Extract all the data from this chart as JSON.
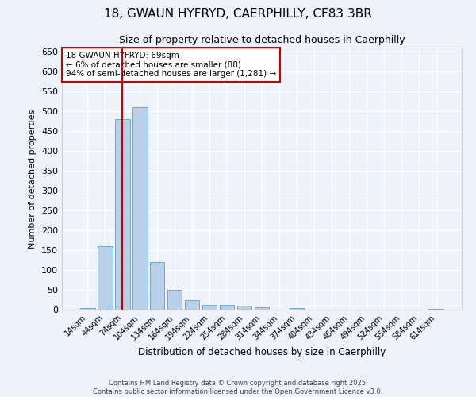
{
  "title_line1": "18, GWAUN HYFRYD, CAERPHILLY, CF83 3BR",
  "title_line2": "Size of property relative to detached houses in Caerphilly",
  "xlabel": "Distribution of detached houses by size in Caerphilly",
  "ylabel": "Number of detached properties",
  "categories": [
    "14sqm",
    "44sqm",
    "74sqm",
    "104sqm",
    "134sqm",
    "164sqm",
    "194sqm",
    "224sqm",
    "254sqm",
    "284sqm",
    "314sqm",
    "344sqm",
    "374sqm",
    "404sqm",
    "434sqm",
    "464sqm",
    "494sqm",
    "524sqm",
    "554sqm",
    "584sqm",
    "614sqm"
  ],
  "values": [
    5,
    160,
    480,
    510,
    120,
    50,
    25,
    12,
    12,
    10,
    7,
    0,
    4,
    0,
    0,
    0,
    0,
    0,
    0,
    0,
    3
  ],
  "bar_color": "#b8d0ea",
  "bar_edge_color": "#6aaad4",
  "ylim": [
    0,
    660
  ],
  "yticks": [
    0,
    50,
    100,
    150,
    200,
    250,
    300,
    350,
    400,
    450,
    500,
    550,
    600,
    650
  ],
  "vline_x": 2.0,
  "vline_color": "#cc0000",
  "annotation_title": "18 GWAUN HYFRYD: 69sqm",
  "annotation_line2": "← 6% of detached houses are smaller (88)",
  "annotation_line3": "94% of semi-detached houses are larger (1,281) →",
  "annotation_box_color": "#cc0000",
  "background_color": "#eef2fb",
  "grid_color": "#ffffff",
  "footer_line1": "Contains HM Land Registry data © Crown copyright and database right 2025.",
  "footer_line2": "Contains public sector information licensed under the Open Government Licence v3.0."
}
